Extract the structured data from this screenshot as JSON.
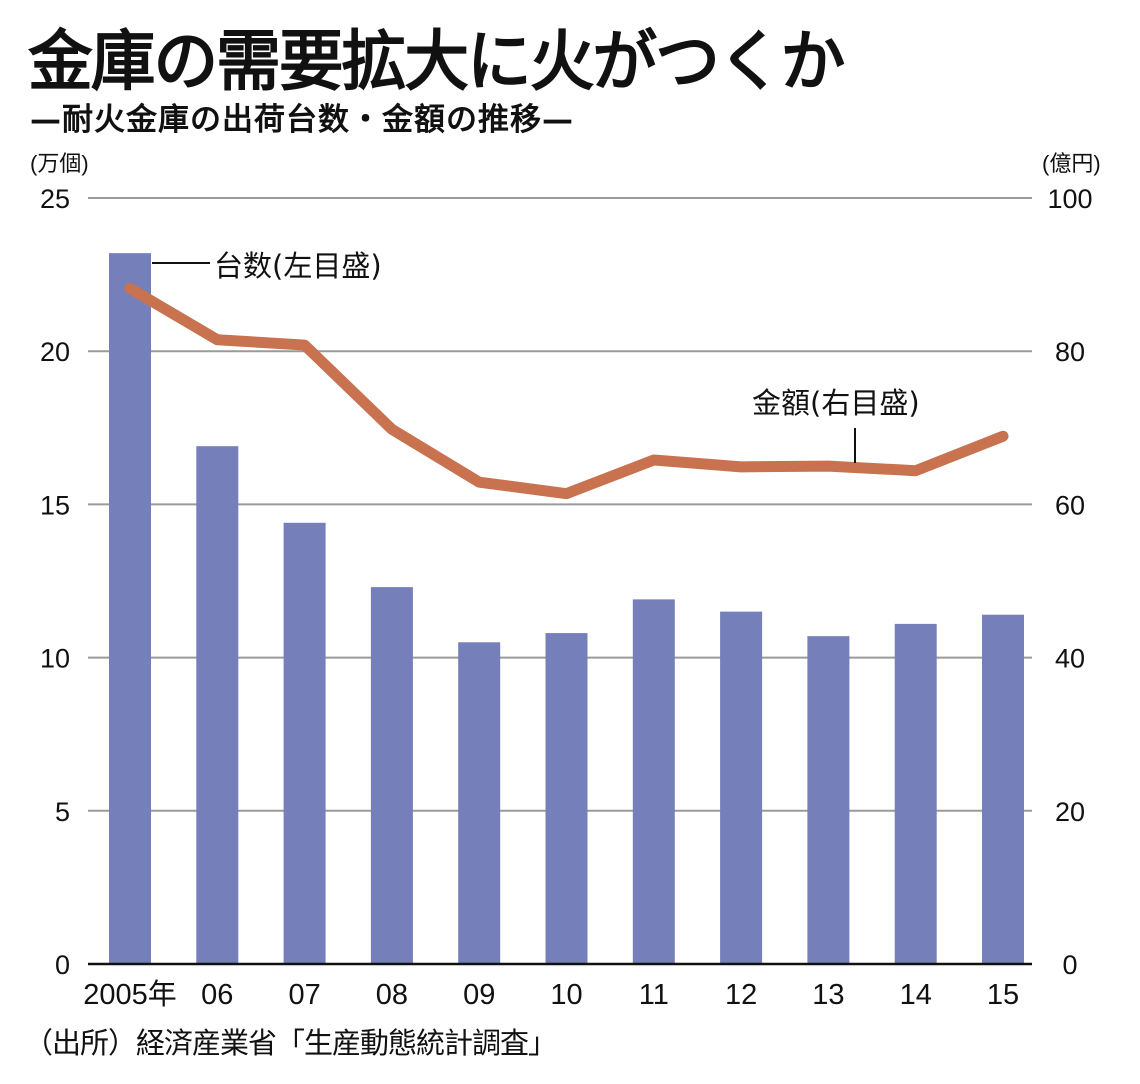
{
  "header": {
    "title": "金庫の需要拡大に火がつくか",
    "subtitle": "—耐火金庫の出荷台数・金額の推移—"
  },
  "footer": {
    "source": "（出所）経済産業省「生産動態統計調査」"
  },
  "colors": {
    "bar": "#757fba",
    "line": "#c8724f",
    "grid": "#9a9a9a",
    "axis": "#111111"
  },
  "chart_data": {
    "type": "bar+line",
    "title": "金庫の需要拡大に火がつくか",
    "subtitle": "—耐火金庫の出荷台数・金額の推移—",
    "categories": [
      "2005年",
      "06",
      "07",
      "08",
      "09",
      "10",
      "11",
      "12",
      "13",
      "14",
      "15"
    ],
    "series": [
      {
        "name": "台数(左目盛)",
        "type": "bar",
        "axis": "left",
        "values": [
          23.2,
          16.9,
          14.4,
          12.3,
          10.5,
          10.8,
          11.9,
          11.5,
          10.7,
          11.1,
          11.4
        ]
      },
      {
        "name": "金額(右目盛)",
        "type": "line",
        "axis": "right",
        "values": [
          88.2,
          81.5,
          80.8,
          69.8,
          62.9,
          61.4,
          65.8,
          64.9,
          65.0,
          64.4,
          68.9
        ]
      }
    ],
    "left_axis": {
      "label": "(万個)",
      "ylim": [
        0,
        25
      ],
      "ticks": [
        "0",
        "5",
        "10",
        "15",
        "20",
        "25"
      ]
    },
    "right_axis": {
      "label": "(億円)",
      "ylim": [
        0,
        100
      ],
      "ticks": [
        "0",
        "20",
        "40",
        "60",
        "80",
        "100"
      ]
    },
    "annotations": [
      {
        "text": "台数(左目盛)",
        "target": "bar 2005年"
      },
      {
        "text": "金額(右目盛)",
        "target": "line near 13"
      }
    ],
    "grid": true,
    "source": "（出所）経済産業省「生産動態統計調査」"
  }
}
